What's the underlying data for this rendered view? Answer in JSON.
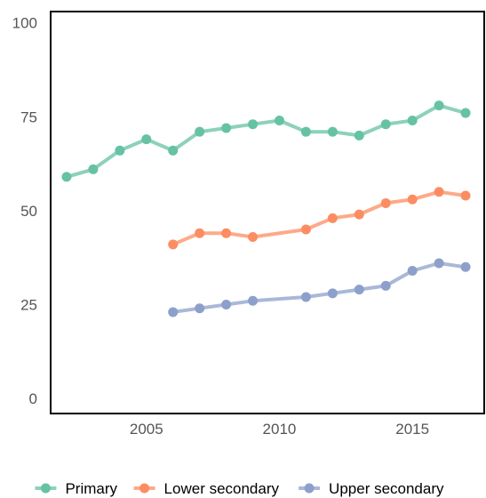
{
  "chart_data": {
    "type": "line",
    "xlim": [
      2001.4,
      2017.7
    ],
    "ylim": [
      -4,
      103
    ],
    "x_ticks": [
      2005,
      2010,
      2015
    ],
    "y_ticks": [
      0,
      25,
      50,
      75,
      100
    ],
    "grid": false,
    "legend_position": "bottom",
    "series": [
      {
        "name": "Primary",
        "color": "#66c2a5",
        "points": [
          [
            2002,
            59
          ],
          [
            2003,
            61
          ],
          [
            2004,
            66
          ],
          [
            2005,
            69
          ],
          [
            2006,
            66
          ],
          [
            2007,
            71
          ],
          [
            2008,
            72
          ],
          [
            2009,
            73
          ],
          [
            2010,
            74
          ],
          [
            2011,
            71
          ],
          [
            2012,
            71
          ],
          [
            2013,
            70
          ],
          [
            2014,
            73
          ],
          [
            2015,
            74
          ],
          [
            2016,
            78
          ],
          [
            2017,
            76
          ]
        ]
      },
      {
        "name": "Lower secondary",
        "color": "#fc8d62",
        "points": [
          [
            2006,
            41
          ],
          [
            2007,
            44
          ],
          [
            2008,
            44
          ],
          [
            2009,
            43
          ],
          [
            2011,
            45
          ],
          [
            2012,
            48
          ],
          [
            2013,
            49
          ],
          [
            2014,
            52
          ],
          [
            2015,
            53
          ],
          [
            2016,
            55
          ],
          [
            2017,
            54
          ]
        ]
      },
      {
        "name": "Upper secondary",
        "color": "#8da0cb",
        "points": [
          [
            2006,
            23
          ],
          [
            2007,
            24
          ],
          [
            2008,
            25
          ],
          [
            2009,
            26
          ],
          [
            2011,
            27
          ],
          [
            2012,
            28
          ],
          [
            2013,
            29
          ],
          [
            2014,
            30
          ],
          [
            2015,
            34
          ],
          [
            2016,
            36
          ],
          [
            2017,
            35
          ]
        ]
      }
    ]
  }
}
